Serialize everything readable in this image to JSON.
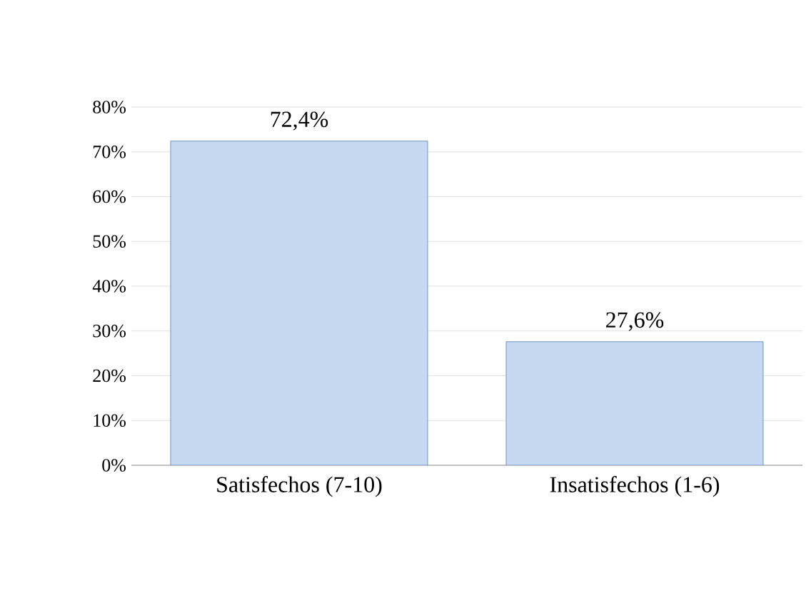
{
  "chart_data": {
    "type": "bar",
    "categories": [
      "Satisfechos (7-10)",
      "Insatisfechos (1-6)"
    ],
    "values": [
      72.4,
      27.6
    ],
    "value_labels": [
      "72,4%",
      "27,6%"
    ],
    "color": "#c6d9f1",
    "ylim": [
      0,
      80
    ],
    "yticks": [
      {
        "value": 0,
        "label": "0%"
      },
      {
        "value": 10,
        "label": "10%"
      },
      {
        "value": 20,
        "label": "20%"
      },
      {
        "value": 30,
        "label": "30%"
      },
      {
        "value": 40,
        "label": "40%"
      },
      {
        "value": 50,
        "label": "50%"
      },
      {
        "value": 60,
        "label": "60%"
      },
      {
        "value": 70,
        "label": "70%"
      },
      {
        "value": 80,
        "label": "80%"
      }
    ],
    "grid": "y"
  }
}
